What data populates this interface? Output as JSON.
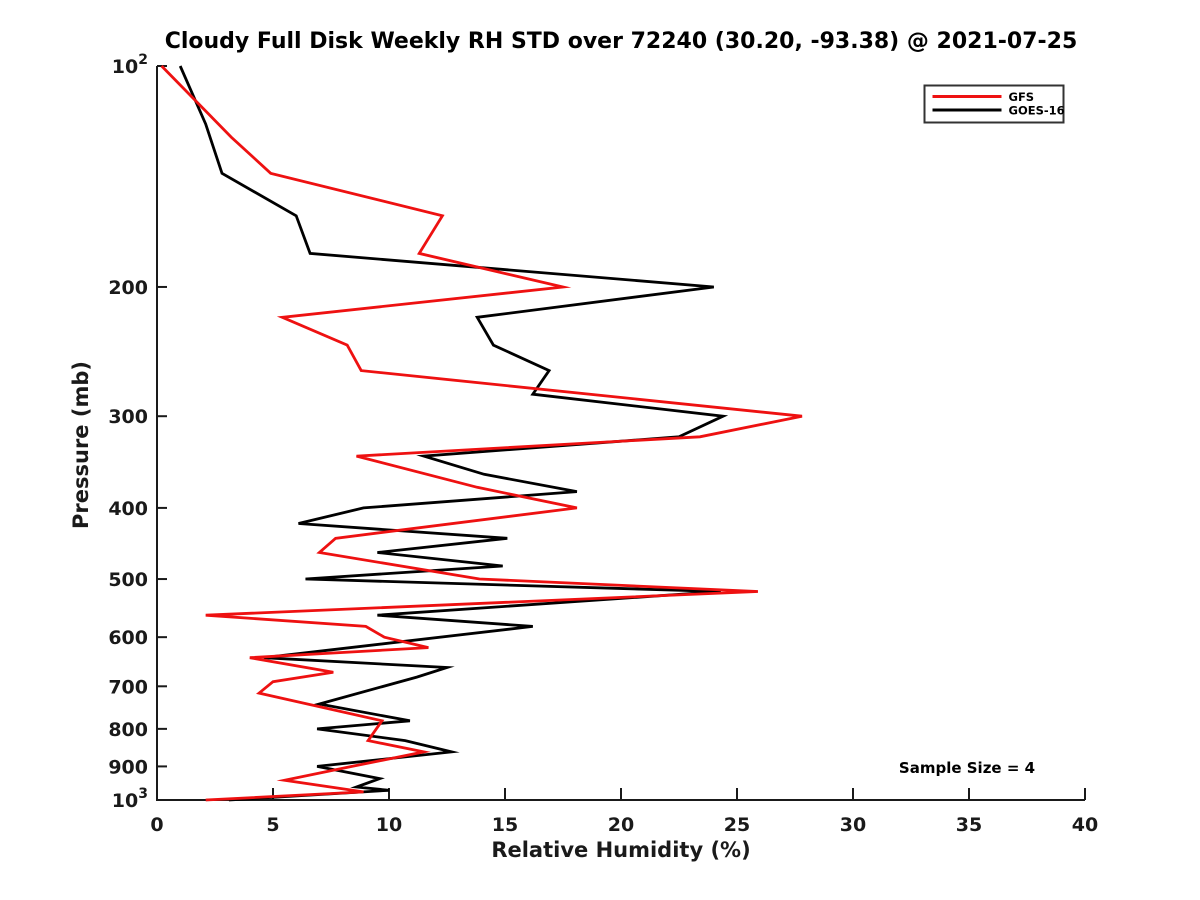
{
  "title": "Cloudy Full Disk Weekly RH STD over 72240 (30.20, -93.38) @ 2021-07-25",
  "annotation": "Sample Size = 4",
  "colors": {
    "gfs": "#ee1111",
    "goes16": "#000000",
    "axis": "#1a1a1a",
    "background": "#ffffff"
  },
  "chart_data": {
    "type": "line",
    "title": "Cloudy Full Disk Weekly RH STD over 72240 (30.20, -93.38) @ 2021-07-25",
    "xlabel": "Relative Humidity (%)",
    "ylabel": "Pressure (mb)",
    "xlim": [
      0,
      40
    ],
    "ylim": [
      100,
      1000
    ],
    "y_scale": "log10",
    "y_inverted": true,
    "grid": false,
    "x_ticks": [
      0,
      5,
      10,
      15,
      20,
      25,
      30,
      35,
      40
    ],
    "y_ticks": [
      {
        "value": 100,
        "label": "10^2"
      },
      {
        "value": 200,
        "label": "200"
      },
      {
        "value": 300,
        "label": "300"
      },
      {
        "value": 400,
        "label": "400"
      },
      {
        "value": 500,
        "label": "500"
      },
      {
        "value": 600,
        "label": "600"
      },
      {
        "value": 700,
        "label": "700"
      },
      {
        "value": 800,
        "label": "800"
      },
      {
        "value": 900,
        "label": "900"
      },
      {
        "value": 1000,
        "label": "10^3"
      }
    ],
    "legend": {
      "position": "top-right",
      "entries": [
        {
          "name": "GFS",
          "color": "#ee1111"
        },
        {
          "name": "GOES-16",
          "color": "#000000"
        }
      ]
    },
    "annotation": {
      "text": "Sample Size = 4",
      "position": "bottom-right"
    },
    "series": [
      {
        "name": "GFS",
        "color": "#ee1111",
        "points_format": [
          "relative_humidity_pct",
          "pressure_mb"
        ],
        "points": [
          [
            0.2,
            100
          ],
          [
            3.2,
            125
          ],
          [
            4.9,
            140
          ],
          [
            12.3,
            160
          ],
          [
            11.3,
            180
          ],
          [
            17.5,
            200
          ],
          [
            5.4,
            220
          ],
          [
            8.2,
            240
          ],
          [
            8.8,
            260
          ],
          [
            27.8,
            300
          ],
          [
            23.4,
            320
          ],
          [
            8.6,
            340
          ],
          [
            13.8,
            375
          ],
          [
            18.1,
            400
          ],
          [
            7.7,
            440
          ],
          [
            7.0,
            460
          ],
          [
            13.9,
            500
          ],
          [
            25.9,
            520
          ],
          [
            2.1,
            560
          ],
          [
            9.0,
            580
          ],
          [
            9.8,
            600
          ],
          [
            11.7,
            620
          ],
          [
            4.0,
            640
          ],
          [
            7.6,
            670
          ],
          [
            5.0,
            690
          ],
          [
            4.4,
            715
          ],
          [
            9.7,
            780
          ],
          [
            9.1,
            830
          ],
          [
            11.5,
            860
          ],
          [
            8.4,
            900
          ],
          [
            5.5,
            940
          ],
          [
            8.9,
            975
          ],
          [
            2.1,
            1000
          ]
        ]
      },
      {
        "name": "GOES-16",
        "color": "#000000",
        "points_format": [
          "relative_humidity_pct",
          "pressure_mb"
        ],
        "points": [
          [
            1.0,
            100
          ],
          [
            2.1,
            120
          ],
          [
            2.8,
            140
          ],
          [
            6.0,
            160
          ],
          [
            6.6,
            180
          ],
          [
            24.0,
            200
          ],
          [
            13.8,
            220
          ],
          [
            14.5,
            240
          ],
          [
            16.9,
            260
          ],
          [
            16.2,
            280
          ],
          [
            24.4,
            300
          ],
          [
            22.5,
            320
          ],
          [
            11.5,
            340
          ],
          [
            14.1,
            360
          ],
          [
            18.1,
            380
          ],
          [
            8.9,
            400
          ],
          [
            6.1,
            420
          ],
          [
            15.1,
            440
          ],
          [
            9.5,
            460
          ],
          [
            14.9,
            480
          ],
          [
            6.4,
            500
          ],
          [
            24.3,
            520
          ],
          [
            9.5,
            560
          ],
          [
            16.2,
            580
          ],
          [
            4.6,
            640
          ],
          [
            12.5,
            660
          ],
          [
            11.2,
            680
          ],
          [
            7.0,
            740
          ],
          [
            10.9,
            780
          ],
          [
            6.9,
            800
          ],
          [
            10.7,
            830
          ],
          [
            12.7,
            860
          ],
          [
            6.9,
            900
          ],
          [
            9.6,
            935
          ],
          [
            8.6,
            960
          ],
          [
            10.0,
            970
          ],
          [
            3.1,
            1000
          ]
        ]
      }
    ]
  }
}
